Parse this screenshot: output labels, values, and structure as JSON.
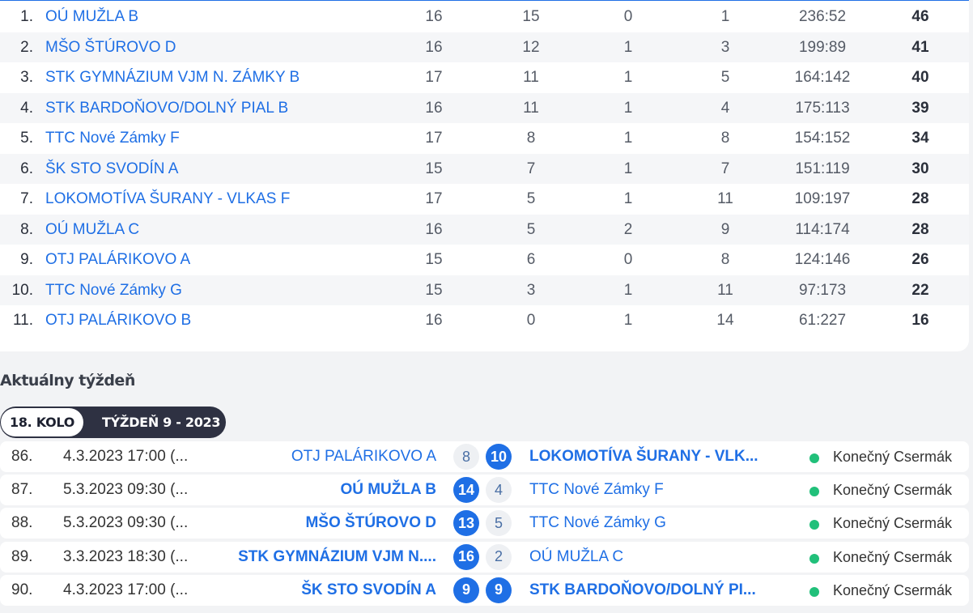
{
  "standings": [
    {
      "rank": "1.",
      "team": "OÚ MUŽLA B",
      "played": "16",
      "won": "15",
      "draw": "0",
      "lost": "1",
      "score": "236:52",
      "points": "46"
    },
    {
      "rank": "2.",
      "team": "MŠO ŠTÚROVO D",
      "played": "16",
      "won": "12",
      "draw": "1",
      "lost": "3",
      "score": "199:89",
      "points": "41"
    },
    {
      "rank": "3.",
      "team": "STK GYMNÁZIUM VJM N. ZÁMKY B",
      "played": "17",
      "won": "11",
      "draw": "1",
      "lost": "5",
      "score": "164:142",
      "points": "40"
    },
    {
      "rank": "4.",
      "team": "STK BARDOŇOVO/DOLNÝ PIAL B",
      "played": "16",
      "won": "11",
      "draw": "1",
      "lost": "4",
      "score": "175:113",
      "points": "39"
    },
    {
      "rank": "5.",
      "team": "TTC Nové Zámky F",
      "played": "17",
      "won": "8",
      "draw": "1",
      "lost": "8",
      "score": "154:152",
      "points": "34"
    },
    {
      "rank": "6.",
      "team": "ŠK STO SVODÍN A",
      "played": "15",
      "won": "7",
      "draw": "1",
      "lost": "7",
      "score": "151:119",
      "points": "30"
    },
    {
      "rank": "7.",
      "team": "LOKOMOTÍVA ŠURANY - VLKAS F",
      "played": "17",
      "won": "5",
      "draw": "1",
      "lost": "11",
      "score": "109:197",
      "points": "28"
    },
    {
      "rank": "8.",
      "team": "OÚ MUŽLA C",
      "played": "16",
      "won": "5",
      "draw": "2",
      "lost": "9",
      "score": "114:174",
      "points": "28"
    },
    {
      "rank": "9.",
      "team": "OTJ PALÁRIKOVO A",
      "played": "15",
      "won": "6",
      "draw": "0",
      "lost": "8",
      "score": "124:146",
      "points": "26"
    },
    {
      "rank": "10.",
      "team": "TTC Nové Zámky G",
      "played": "15",
      "won": "3",
      "draw": "1",
      "lost": "11",
      "score": "97:173",
      "points": "22"
    },
    {
      "rank": "11.",
      "team": "OTJ PALÁRIKOVO B",
      "played": "16",
      "won": "0",
      "draw": "1",
      "lost": "14",
      "score": "61:227",
      "points": "16"
    }
  ],
  "current_week": {
    "title": "Aktuálny týždeň",
    "round_label": "18. KOLO",
    "week_label": "TÝŽDEŇ 9 - 2023"
  },
  "matches": [
    {
      "no": "86.",
      "date": "4.3.2023 17:00 (...",
      "home": "OTJ PALÁRIKOVO A",
      "home_score": "8",
      "away_score": "10",
      "away": "LOKOMOTÍVA ŠURANY - VLK...",
      "winner": "away",
      "status": "Konečný Csermák"
    },
    {
      "no": "87.",
      "date": "5.3.2023 09:30 (...",
      "home": "OÚ MUŽLA B",
      "home_score": "14",
      "away_score": "4",
      "away": "TTC Nové Zámky F",
      "winner": "home",
      "status": "Konečný Csermák"
    },
    {
      "no": "88.",
      "date": "5.3.2023 09:30 (...",
      "home": "MŠO ŠTÚROVO D",
      "home_score": "13",
      "away_score": "5",
      "away": "TTC Nové Zámky G",
      "winner": "home",
      "status": "Konečný Csermák"
    },
    {
      "no": "89.",
      "date": "3.3.2023 18:30 (...",
      "home": "STK GYMNÁZIUM VJM N....",
      "home_score": "16",
      "away_score": "2",
      "away": "OÚ MUŽLA C",
      "winner": "home",
      "status": "Konečný Csermák"
    },
    {
      "no": "90.",
      "date": "4.3.2023 17:00 (...",
      "home": "ŠK STO SVODÍN A",
      "home_score": "9",
      "away_score": "9",
      "away": "STK BARDOŇOVO/DOLNÝ PI...",
      "winner": "draw",
      "status": "Konečný Csermák"
    }
  ],
  "colors": {
    "link": "#1f6fe5",
    "accent": "#1f6fe5",
    "status_dot": "#21c07a",
    "pill_bg": "#2e3142"
  }
}
